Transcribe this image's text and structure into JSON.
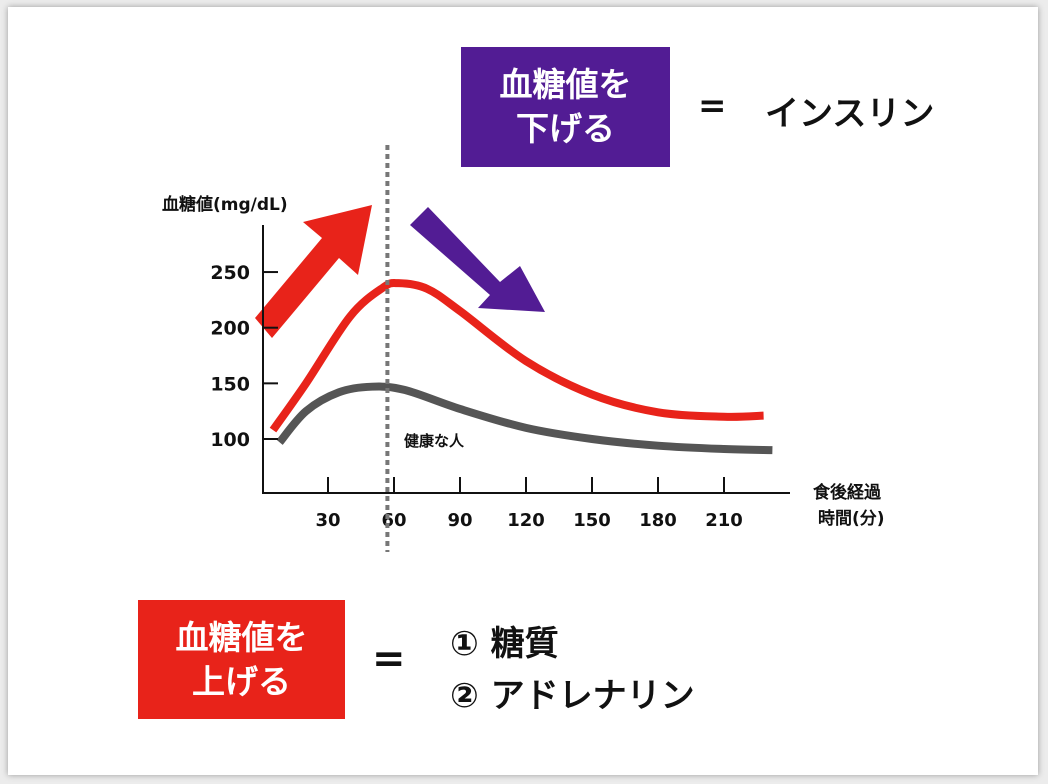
{
  "top_box": {
    "line1": "血糖値を",
    "line2": "下げる",
    "color": "#521c94"
  },
  "top_equals": "=",
  "top_result": "インスリン",
  "bottom_box": {
    "line1": "血糖値を",
    "line2": "上げる",
    "color": "#e8231a"
  },
  "bottom_equals": "=",
  "bottom_items": [
    "① 糖質",
    "② アドレナリン"
  ],
  "chart_data": {
    "type": "line",
    "ylabel": "血糖値(mg/dL)",
    "xlabel_line1": "食後経過",
    "xlabel_line2": "時間(分)",
    "x_ticks": [
      30,
      60,
      90,
      120,
      150,
      180,
      210
    ],
    "y_ticks": [
      100,
      150,
      200,
      250
    ],
    "xlim": [
      0,
      240
    ],
    "ylim": [
      52,
      292
    ],
    "grid": false,
    "reference_line_x": 57,
    "annotation": "健康な人",
    "series": [
      {
        "color": "#e8231a",
        "x": [
          5,
          20,
          40,
          55,
          62,
          75,
          90,
          120,
          150,
          180,
          210,
          228
        ],
        "y": [
          108,
          150,
          210,
          236,
          240,
          235,
          215,
          170,
          140,
          124,
          120,
          121
        ]
      },
      {
        "color": "#555555",
        "x": [
          8,
          20,
          35,
          50,
          65,
          90,
          120,
          150,
          180,
          210,
          232
        ],
        "y": [
          97,
          125,
          142,
          147,
          144,
          127,
          110,
          100,
          94,
          91,
          90
        ]
      }
    ],
    "arrows": [
      {
        "direction": "up",
        "color": "#e8231a"
      },
      {
        "direction": "down",
        "color": "#521c94"
      }
    ]
  }
}
